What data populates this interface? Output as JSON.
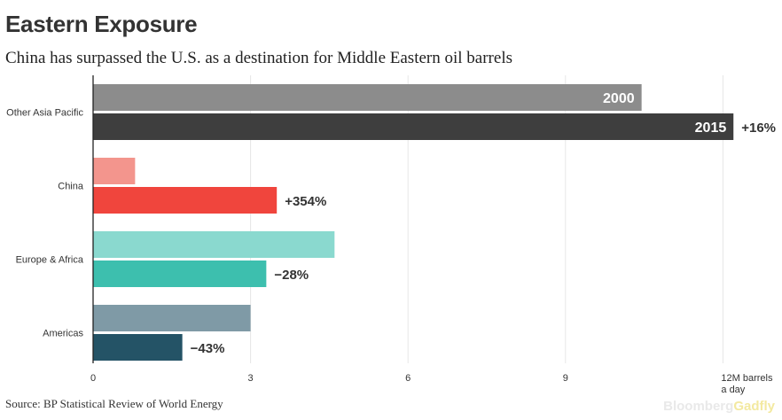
{
  "title": "Eastern Exposure",
  "subtitle": "China has surpassed the U.S. as a destination for Middle Eastern oil barrels",
  "source": "Source: BP Statistical Review of World Energy",
  "brand": {
    "part1": "Bloomberg",
    "part2": "Gadfly"
  },
  "chart_data": {
    "type": "bar",
    "orientation": "horizontal",
    "categories": [
      "Other Asia Pacific",
      "China",
      "Europe & Africa",
      "Americas"
    ],
    "series": [
      {
        "name": "2000",
        "values": [
          10.45,
          0.8,
          4.6,
          3.0
        ],
        "colors": [
          "#8c8c8c",
          "#f3958d",
          "#8ad9cf",
          "#7f9aa6"
        ]
      },
      {
        "name": "2015",
        "values": [
          12.2,
          3.5,
          3.3,
          1.7
        ],
        "colors": [
          "#3e3e3e",
          "#f0453d",
          "#3dbfae",
          "#245366"
        ]
      }
    ],
    "change_labels": [
      "+16%",
      "+354%",
      "−28%",
      "−43%"
    ],
    "x_ticks": [
      "0",
      "3",
      "6",
      "9",
      "12M barrels\na day"
    ],
    "x_tick_values": [
      0,
      3,
      6,
      9,
      12
    ],
    "xlim": [
      0,
      12.4
    ],
    "grid": true,
    "legend": "inline on first category bars"
  }
}
